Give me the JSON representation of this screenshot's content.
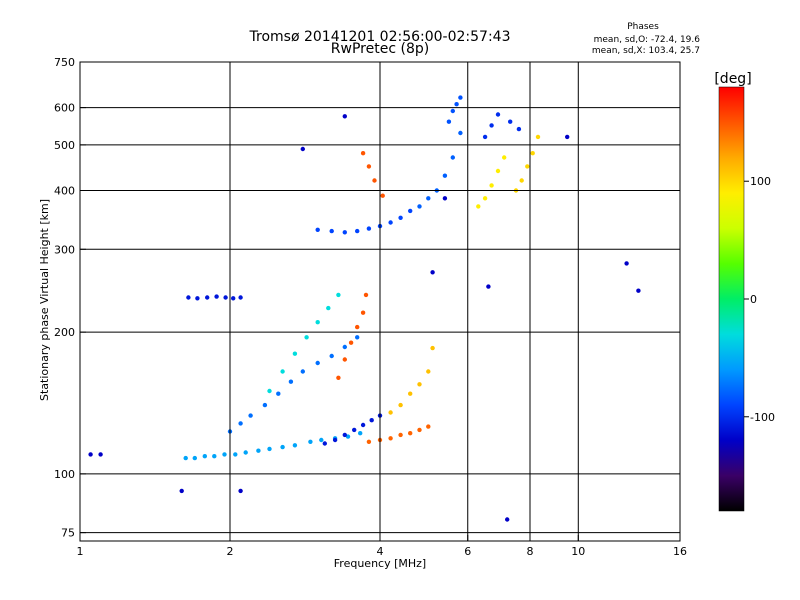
{
  "chart_data": {
    "type": "scatter",
    "title": "Tromsø 20141201 02:56:00-02:57:43",
    "subtitle": "RwPretec (8p)",
    "xlabel": "Frequency [MHz]",
    "ylabel": "Stationary phase Virtual Height [km]",
    "x_scale": "log",
    "y_scale": "log",
    "xlim": [
      1,
      16
    ],
    "ylim": [
      72,
      750
    ],
    "x_ticks": [
      "1",
      "2",
      "4",
      "6",
      "8",
      "10",
      "16"
    ],
    "y_ticks": [
      "75",
      "100",
      "200",
      "300",
      "400",
      "500",
      "600",
      "750"
    ],
    "grid": true,
    "stats": {
      "heading": "Phases",
      "line_o": "mean, sd,O: -72.4, 19.6",
      "line_x": "mean, sd,X: 103.4, 25.7"
    },
    "colorbar": {
      "label": "[deg]",
      "range": [
        -180,
        180
      ],
      "ticks": [
        "100",
        "0",
        "-100"
      ],
      "colormap": [
        "#000000",
        "#3a0066",
        "#0000c8",
        "#0044ff",
        "#0099ff",
        "#00dddd",
        "#00ee66",
        "#55ff00",
        "#ccff00",
        "#ffee00",
        "#ffaa00",
        "#ff5500",
        "#ff0000"
      ]
    },
    "series": [
      {
        "x": [
          1.63,
          1.7,
          1.78,
          1.86,
          1.95,
          2.05,
          2.15,
          2.28,
          2.4,
          2.55,
          2.7,
          2.9,
          3.05,
          3.25,
          3.45,
          3.65
        ],
        "y": [
          108,
          108,
          109,
          109,
          110,
          110,
          111,
          112,
          113,
          114,
          115,
          117,
          118,
          119,
          120,
          122
        ],
        "phase": -55
      },
      {
        "x": [
          3.1,
          3.25,
          3.4,
          3.55,
          3.7,
          3.85,
          4.0
        ],
        "y": [
          116,
          118,
          121,
          124,
          127,
          130,
          133
        ],
        "phase": -110
      },
      {
        "x": [
          3.8,
          4.0,
          4.2,
          4.4,
          4.6,
          4.8,
          5.0
        ],
        "y": [
          117,
          118,
          119,
          121,
          122,
          124,
          126
        ],
        "phase": 145
      },
      {
        "x": [
          1.65,
          1.72,
          1.8,
          1.88,
          1.96,
          2.03,
          2.1
        ],
        "y": [
          237,
          236,
          237,
          238,
          237,
          236,
          237
        ],
        "phase": -110
      },
      {
        "x": [
          2.0,
          2.1,
          2.2,
          2.35,
          2.5,
          2.65,
          2.8,
          3.0,
          3.2,
          3.4,
          3.6
        ],
        "y": [
          123,
          128,
          133,
          140,
          148,
          157,
          165,
          172,
          178,
          186,
          195
        ],
        "phase": -75
      },
      {
        "x": [
          2.4,
          2.55,
          2.7,
          2.85,
          3.0,
          3.15,
          3.3
        ],
        "y": [
          150,
          165,
          180,
          195,
          210,
          225,
          240
        ],
        "phase": -30
      },
      {
        "x": [
          3.3,
          3.4,
          3.5,
          3.6,
          3.7,
          3.75
        ],
        "y": [
          160,
          175,
          190,
          205,
          220,
          240
        ],
        "phase": 150
      },
      {
        "x": [
          4.2,
          4.4,
          4.6,
          4.8,
          5.0,
          5.1
        ],
        "y": [
          135,
          140,
          148,
          155,
          165,
          185
        ],
        "phase": 110
      },
      {
        "x": [
          3.0,
          3.2,
          3.4,
          3.6,
          3.8,
          4.0,
          4.2,
          4.4,
          4.6
        ],
        "y": [
          330,
          328,
          326,
          328,
          332,
          336,
          342,
          350,
          362
        ],
        "phase": -90
      },
      {
        "x": [
          4.8,
          5.0,
          5.2,
          5.4,
          5.6,
          5.8
        ],
        "y": [
          370,
          385,
          400,
          430,
          470,
          530
        ],
        "phase": -80
      },
      {
        "x": [
          5.5,
          5.6,
          5.7,
          5.8
        ],
        "y": [
          560,
          590,
          610,
          630
        ],
        "phase": -85
      },
      {
        "x": [
          6.3,
          6.5,
          6.7,
          6.9,
          7.1
        ],
        "y": [
          370,
          385,
          410,
          440,
          470
        ],
        "phase": 90
      },
      {
        "x": [
          7.5,
          7.7,
          7.9,
          8.1,
          8.3
        ],
        "y": [
          400,
          420,
          450,
          480,
          520
        ],
        "phase": 100
      },
      {
        "x": [
          6.5,
          6.7,
          6.9,
          7.3,
          7.6
        ],
        "y": [
          520,
          550,
          580,
          560,
          540
        ],
        "phase": -100
      },
      {
        "x": [
          3.7,
          3.8,
          3.9,
          4.05
        ],
        "y": [
          480,
          450,
          420,
          390
        ],
        "phase": 150
      },
      {
        "x": [
          1.05,
          1.1,
          1.6,
          2.1,
          2.8,
          3.4,
          5.1,
          5.4,
          6.6,
          7.2,
          9.5,
          12.5,
          13.2
        ],
        "y": [
          110,
          110,
          92,
          92,
          490,
          575,
          268,
          385,
          250,
          80,
          520,
          280,
          245
        ],
        "phase": -120
      }
    ]
  }
}
